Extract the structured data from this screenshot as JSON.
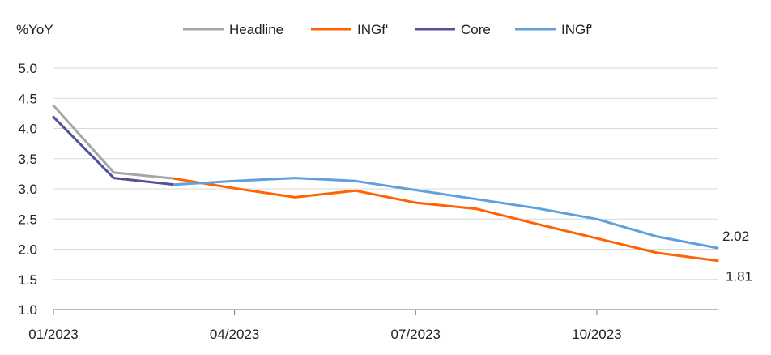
{
  "chart_data": {
    "type": "line",
    "ylabel": "%YoY",
    "ylim": [
      1.0,
      5.0
    ],
    "yticks": [
      "1.0",
      "1.5",
      "2.0",
      "2.5",
      "3.0",
      "3.5",
      "4.0",
      "4.5",
      "5.0"
    ],
    "x_tick_labels": [
      "01/2023",
      "04/2023",
      "07/2023",
      "10/2023"
    ],
    "x_tick_months": [
      1,
      4,
      7,
      10
    ],
    "x_range_months": [
      1,
      12
    ],
    "grid": true,
    "legend_position": "top",
    "series": [
      {
        "name": "Headline",
        "color": "#a6a6a6",
        "x": [
          1,
          2,
          3
        ],
        "values": [
          4.38,
          3.27,
          3.17
        ]
      },
      {
        "name": "INGf'",
        "color": "#ff6200",
        "x": [
          3,
          4,
          5,
          6,
          7,
          8,
          9,
          10,
          11,
          12
        ],
        "values": [
          3.17,
          3.01,
          2.86,
          2.97,
          2.77,
          2.67,
          2.42,
          2.18,
          1.94,
          1.81
        ]
      },
      {
        "name": "Core",
        "color": "#525199",
        "x": [
          1,
          2,
          3
        ],
        "values": [
          4.19,
          3.18,
          3.07
        ]
      },
      {
        "name": "INGf'",
        "color": "#60a0dc",
        "x": [
          3,
          4,
          5,
          6,
          7,
          8,
          9,
          10,
          11,
          12
        ],
        "values": [
          3.07,
          3.13,
          3.18,
          3.13,
          2.98,
          2.83,
          2.68,
          2.5,
          2.21,
          2.02
        ]
      }
    ],
    "annotations": [
      {
        "text": "2.02",
        "series_index": 3,
        "point_index": 9
      },
      {
        "text": "1.81",
        "series_index": 1,
        "point_index": 9
      }
    ]
  }
}
